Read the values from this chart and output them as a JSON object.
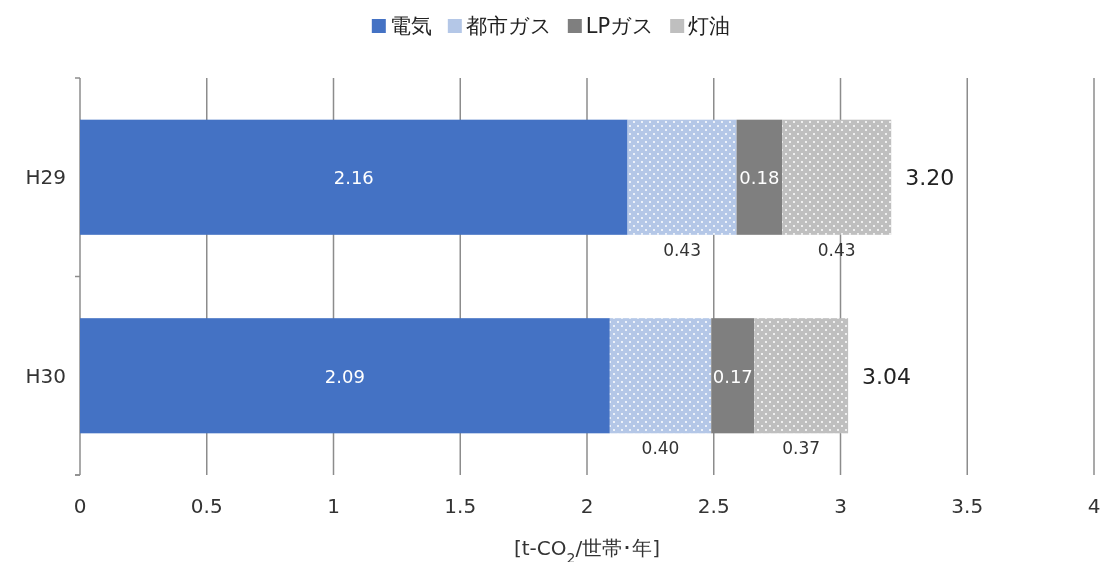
{
  "chart_data": {
    "type": "bar",
    "orientation": "horizontal",
    "stacked": true,
    "categories": [
      "H29",
      "H30"
    ],
    "series": [
      {
        "name": "電気",
        "color": "#4472c4",
        "values": [
          2.16,
          2.09
        ],
        "value_labels": [
          "2.16",
          "2.09"
        ]
      },
      {
        "name": "都市ガス",
        "color": "#b4c7e7",
        "values": [
          0.43,
          0.4
        ],
        "value_labels": [
          "0.43",
          "0.40"
        ]
      },
      {
        "name": "LPガス",
        "color": "#7f7f7f",
        "values": [
          0.18,
          0.17
        ],
        "value_labels": [
          "0.18",
          "0.17"
        ]
      },
      {
        "name": "灯油",
        "color": "#bfbfbf",
        "values": [
          0.43,
          0.37
        ],
        "value_labels": [
          "0.43",
          "0.37"
        ]
      }
    ],
    "totals": [
      "3.20",
      "3.04"
    ],
    "xlim": [
      0,
      4
    ],
    "xticks": [
      0,
      0.5,
      1,
      1.5,
      2,
      2.5,
      3,
      3.5,
      4
    ],
    "xlabel": "[t-CO$_{2}$/世帯･年]",
    "grid": "x",
    "legend": "top"
  }
}
